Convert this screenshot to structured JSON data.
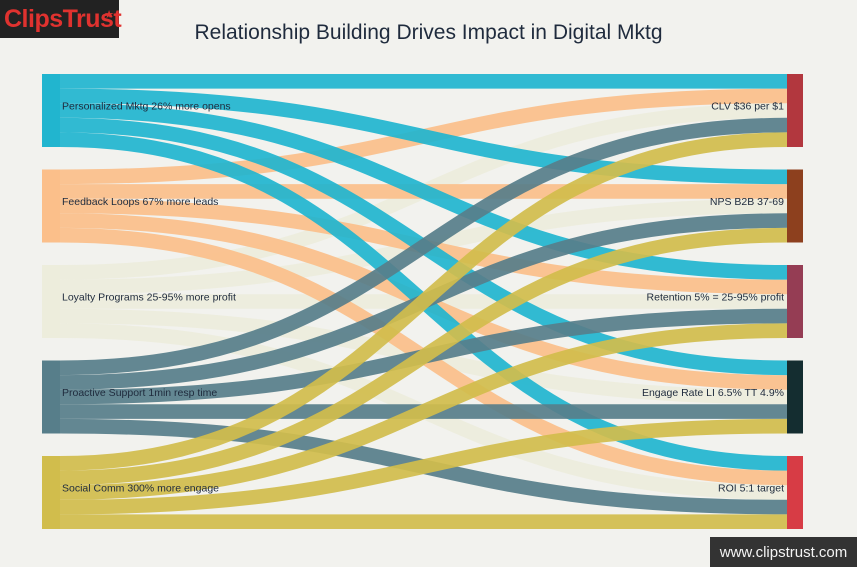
{
  "brand": {
    "name": "ClipsTrust",
    "star": "★",
    "url": "www.clipstrust.com"
  },
  "title": "Relationship Building Drives Impact in Digital Mktg",
  "chart_data": {
    "type": "sankey",
    "sources": [
      {
        "label": "Personalized Mktg 26% more opens",
        "color": "#21b5cf"
      },
      {
        "label": "Feedback Loops 67% more leads",
        "color": "#fbbf8a"
      },
      {
        "label": "Loyalty Programs 25-95% more profit",
        "color": "#ededdc"
      },
      {
        "label": "Proactive Support 1min resp time",
        "color": "#577e8a"
      },
      {
        "label": "Social Comm 300% more engage",
        "color": "#d1bd4c"
      }
    ],
    "targets": [
      {
        "label": "CLV $36 per $1",
        "color": "#b2373e"
      },
      {
        "label": "NPS B2B 37-69",
        "color": "#8d401e"
      },
      {
        "label": "Retention 5% = 25-95% profit",
        "color": "#953d54"
      },
      {
        "label": "Engage Rate LI 6.5% TT 4.9%",
        "color": "#142d30"
      },
      {
        "label": "ROI 5:1 target",
        "color": "#d73c45"
      }
    ],
    "flows_note": "each source sends one equal-width link to every target",
    "links": [
      [
        1,
        1,
        1,
        1,
        1
      ],
      [
        1,
        1,
        1,
        1,
        1
      ],
      [
        1,
        1,
        1,
        1,
        1
      ],
      [
        1,
        1,
        1,
        1,
        1
      ],
      [
        1,
        1,
        1,
        1,
        1
      ]
    ]
  }
}
